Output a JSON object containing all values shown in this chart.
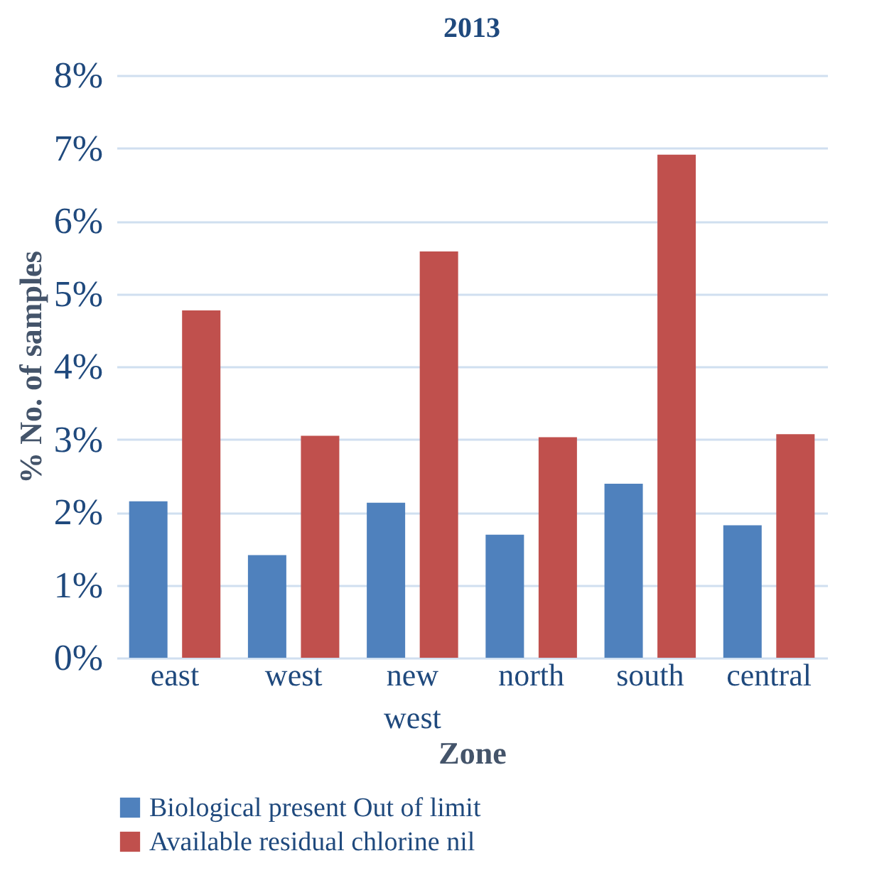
{
  "chart_data": {
    "type": "bar",
    "title": "2013",
    "xlabel": "Zone",
    "ylabel": "% No. of samples",
    "categories": [
      "east",
      "west",
      "new west",
      "north",
      "south",
      "central"
    ],
    "series": [
      {
        "name": "Biological present Out of limit",
        "color": "#4f81bd",
        "values": [
          2.15,
          1.41,
          2.13,
          1.69,
          2.39,
          1.82
        ]
      },
      {
        "name": "Available residual chlorine nil",
        "color": "#c0504d",
        "values": [
          4.77,
          3.05,
          5.58,
          3.03,
          6.91,
          3.07
        ]
      }
    ],
    "ylim": [
      0,
      8
    ],
    "yticks": [
      {
        "value": 0,
        "label": "0%"
      },
      {
        "value": 1,
        "label": "1%"
      },
      {
        "value": 2,
        "label": "2%"
      },
      {
        "value": 3,
        "label": "3%"
      },
      {
        "value": 4,
        "label": "4%"
      },
      {
        "value": 5,
        "label": "5%"
      },
      {
        "value": 6,
        "label": "6%"
      },
      {
        "value": 7,
        "label": "7%"
      },
      {
        "value": 8,
        "label": "8%"
      }
    ],
    "grid": "y",
    "legend": "bottom left"
  }
}
